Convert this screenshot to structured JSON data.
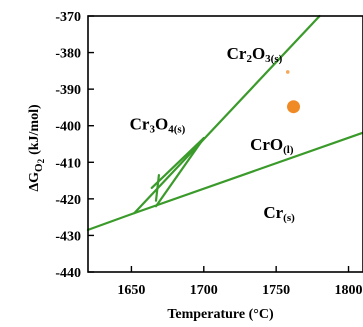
{
  "chart_data": {
    "type": "line",
    "title": "",
    "xlabel": "Temperature (°C)",
    "ylabel": {
      "main": "ΔG",
      "sub": "O",
      "subsub": "2",
      "unit": "(kJ/mol)"
    },
    "xlim": [
      1620,
      1810
    ],
    "ylim": [
      -440,
      -370
    ],
    "x_ticks": [
      1650,
      1700,
      1750,
      1800
    ],
    "y_ticks": [
      -370,
      -380,
      -390,
      -400,
      -410,
      -420,
      -430,
      -440
    ],
    "grid": false,
    "line_color": "#3a9a2a",
    "series": [
      {
        "x": [
          1620,
          1652,
          1810
        ],
        "y": [
          -428.5,
          -423.9,
          -401.9
        ]
      },
      {
        "x": [
          1652,
          1780
        ],
        "y": [
          -423.9,
          -370
        ]
      },
      {
        "x": [
          1667,
          1700
        ],
        "y": [
          -422,
          -403.4
        ]
      },
      {
        "x": [
          1664,
          1700
        ],
        "y": [
          -417,
          -403.4
        ]
      },
      {
        "x": [
          1667,
          1669
        ],
        "y": [
          -420.5,
          -413.5
        ]
      }
    ],
    "markers": [
      {
        "x": [
          1762
        ],
        "y": [
          -394.8
        ],
        "color": "#f08a24",
        "size": 6.5
      },
      {
        "x": [
          1758
        ],
        "y": [
          -385.3
        ],
        "color": "#f3a85a",
        "size": 1.8
      }
    ],
    "region_labels": [
      {
        "text": "Cr",
        "parts": [
          [
            "Cr",
            ""
          ],
          [
            "2",
            "sub"
          ],
          [
            "O",
            ""
          ],
          [
            "3(s)",
            "sub"
          ]
        ],
        "x": 1735,
        "y": -381.8
      },
      {
        "text": "Cr",
        "parts": [
          [
            "Cr",
            ""
          ],
          [
            "3",
            "sub"
          ],
          [
            "O",
            ""
          ],
          [
            "4(s)",
            "sub"
          ]
        ],
        "x": 1668,
        "y": -401
      },
      {
        "text": "CrO",
        "parts": [
          [
            "CrO",
            ""
          ],
          [
            "(l)",
            "sub"
          ]
        ],
        "x": 1747,
        "y": -406.7
      },
      {
        "text": "Cr",
        "parts": [
          [
            "Cr",
            ""
          ],
          [
            "(s)",
            "sub"
          ]
        ],
        "x": 1752,
        "y": -425.2
      }
    ]
  }
}
